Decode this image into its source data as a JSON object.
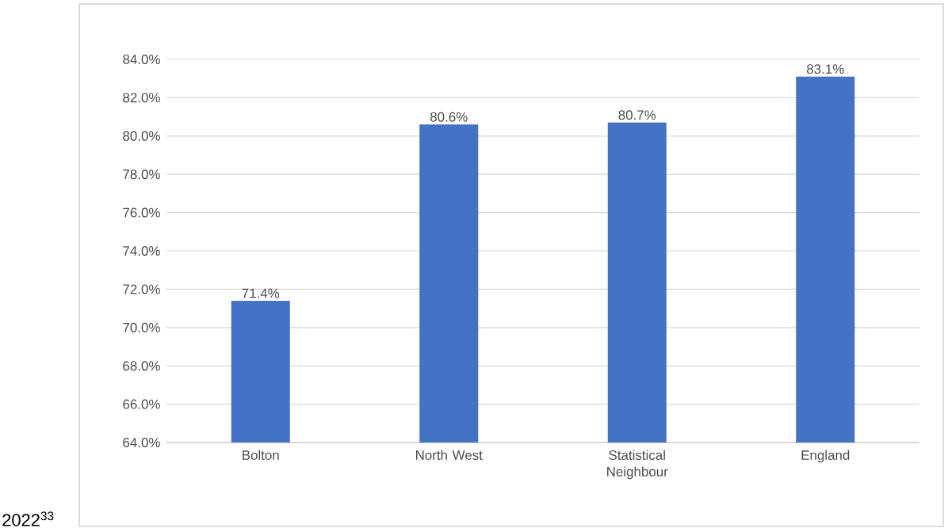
{
  "chart_data": {
    "type": "bar",
    "categories": [
      "Bolton",
      "North West",
      "Statistical Neighbour",
      "England"
    ],
    "values": [
      71.4,
      80.6,
      80.7,
      83.1
    ],
    "value_labels": [
      "71.4%",
      "80.6%",
      "80.7%",
      "83.1%"
    ],
    "color": "#4472c4",
    "ylim": [
      64,
      84
    ],
    "yticks": [
      {
        "value": 64,
        "label": "64.0%"
      },
      {
        "value": 66,
        "label": "66.0%"
      },
      {
        "value": 68,
        "label": "68.0%"
      },
      {
        "value": 70,
        "label": "70.0%"
      },
      {
        "value": 72,
        "label": "72.0%"
      },
      {
        "value": 74,
        "label": "74.0%"
      },
      {
        "value": 76,
        "label": "76.0%"
      },
      {
        "value": 78,
        "label": "78.0%"
      },
      {
        "value": 80,
        "label": "80.0%"
      },
      {
        "value": 82,
        "label": "82.0%"
      },
      {
        "value": 84,
        "label": "84.0%"
      }
    ],
    "grid": "y",
    "annotations": [
      "2022$^{33}$"
    ]
  }
}
